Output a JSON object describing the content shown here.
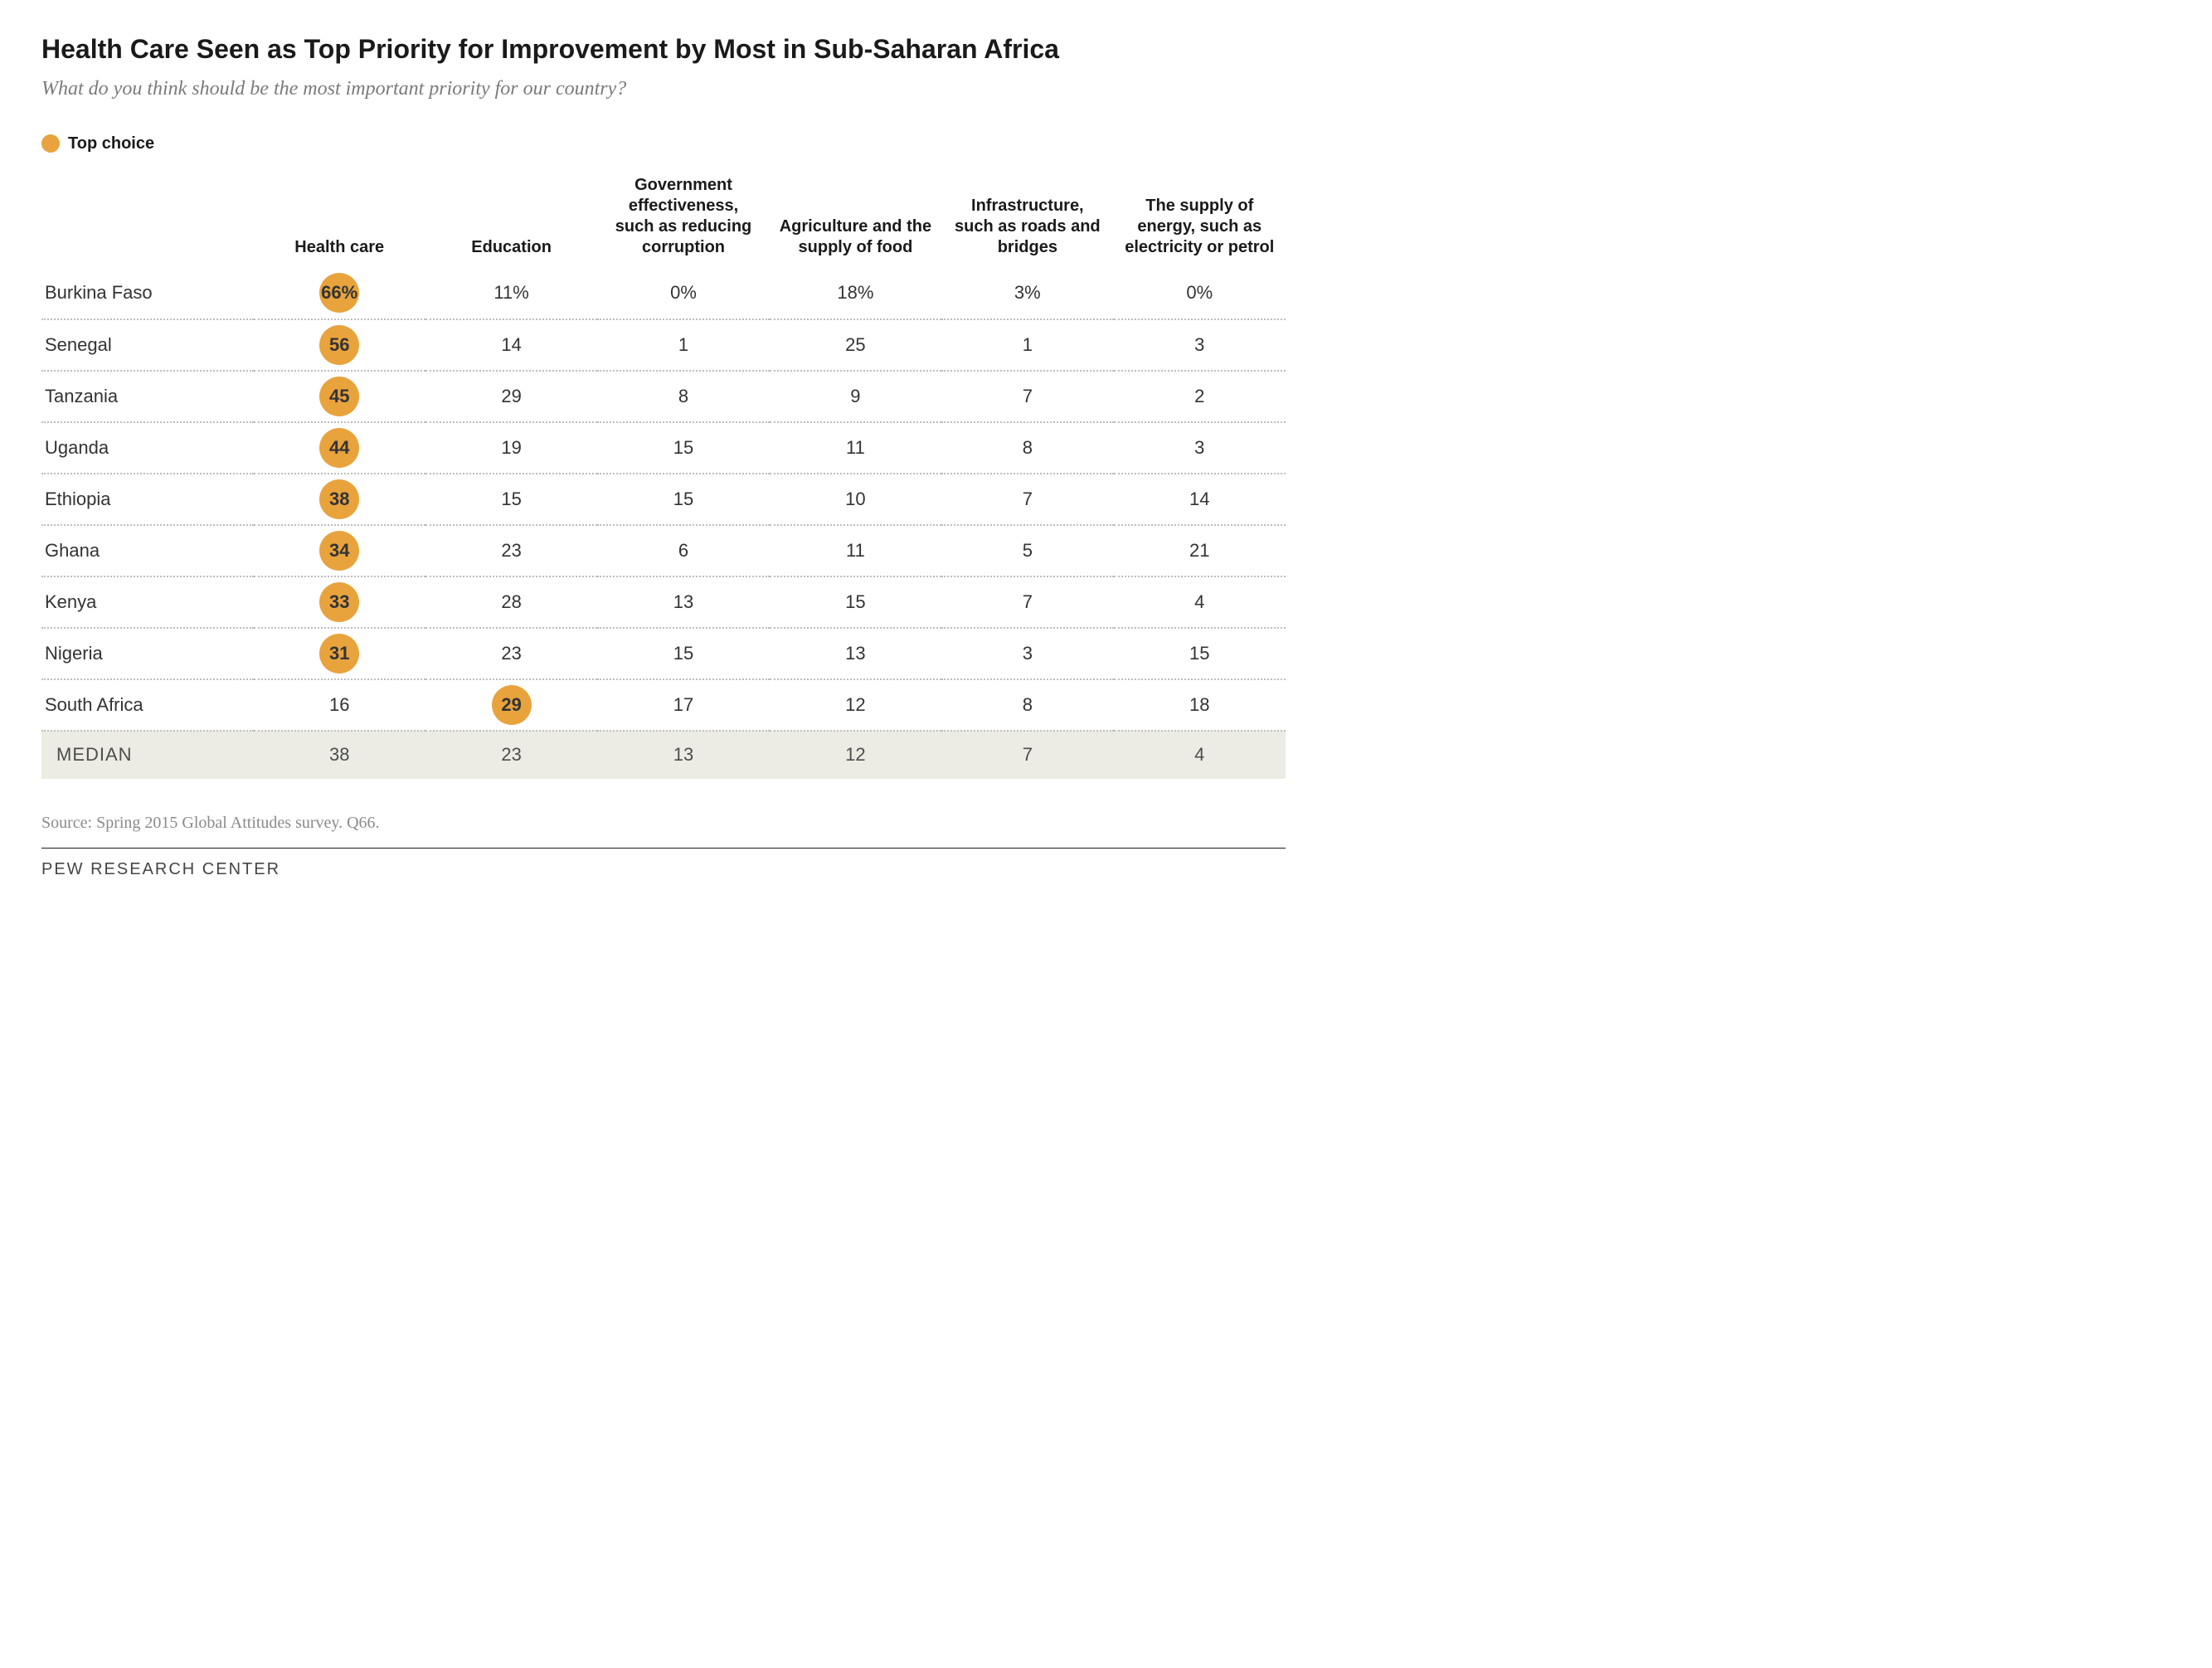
{
  "title": "Health Care Seen as Top Priority for Improvement by Most in Sub-Saharan Africa",
  "subtitle": "What do you think should be the most important priority for our country?",
  "legend": {
    "label": "Top choice",
    "color": "#e8a33d"
  },
  "colors": {
    "text": "#333333",
    "muted": "#7a7a7a",
    "dotted_border": "#bdbdbd",
    "median_bg": "#ecece4",
    "highlight": "#e8a33d",
    "background": "#ffffff"
  },
  "typography": {
    "title_fontsize": 32,
    "subtitle_fontsize": 24,
    "header_fontsize": 20,
    "body_fontsize": 22,
    "font_family_title": "Arial",
    "font_family_subtitle": "Georgia"
  },
  "columns": [
    "",
    "Health care",
    "Education",
    "Government effectiveness, such as reducing corruption",
    "Agriculture and the supply of food",
    "Infrastructure, such as roads and bridges",
    "The supply of energy, such as electricity or petrol"
  ],
  "rows": [
    {
      "country": "Burkina Faso",
      "values": [
        "66%",
        "11%",
        "0%",
        "18%",
        "3%",
        "0%"
      ],
      "top_index": 0
    },
    {
      "country": "Senegal",
      "values": [
        "56",
        "14",
        "1",
        "25",
        "1",
        "3"
      ],
      "top_index": 0
    },
    {
      "country": "Tanzania",
      "values": [
        "45",
        "29",
        "8",
        "9",
        "7",
        "2"
      ],
      "top_index": 0
    },
    {
      "country": "Uganda",
      "values": [
        "44",
        "19",
        "15",
        "11",
        "8",
        "3"
      ],
      "top_index": 0
    },
    {
      "country": "Ethiopia",
      "values": [
        "38",
        "15",
        "15",
        "10",
        "7",
        "14"
      ],
      "top_index": 0
    },
    {
      "country": "Ghana",
      "values": [
        "34",
        "23",
        "6",
        "11",
        "5",
        "21"
      ],
      "top_index": 0
    },
    {
      "country": "Kenya",
      "values": [
        "33",
        "28",
        "13",
        "15",
        "7",
        "4"
      ],
      "top_index": 0
    },
    {
      "country": "Nigeria",
      "values": [
        "31",
        "23",
        "15",
        "13",
        "3",
        "15"
      ],
      "top_index": 0
    },
    {
      "country": "South Africa",
      "values": [
        "16",
        "29",
        "17",
        "12",
        "8",
        "18"
      ],
      "top_index": 1
    }
  ],
  "median": {
    "label": "MEDIAN",
    "values": [
      "38",
      "23",
      "13",
      "12",
      "7",
      "4"
    ]
  },
  "source": "Source: Spring 2015 Global Attitudes survey. Q66.",
  "brand": "PEW RESEARCH CENTER"
}
